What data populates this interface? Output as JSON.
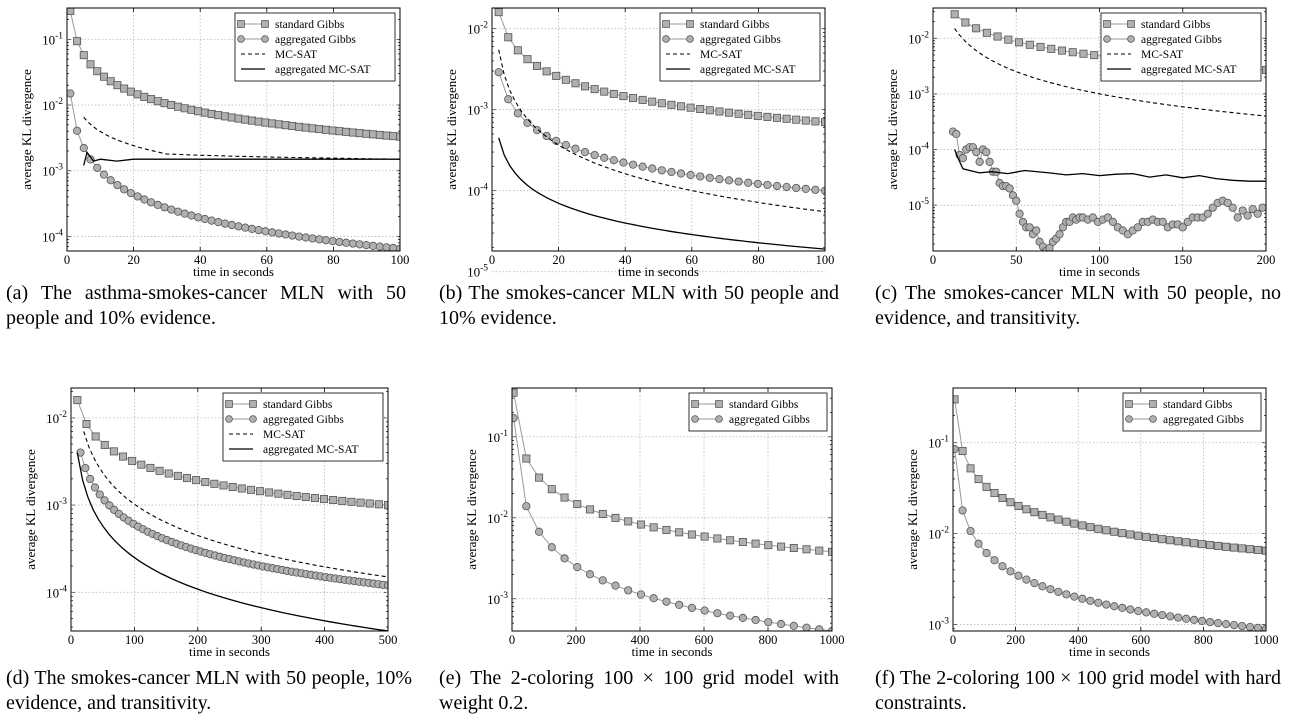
{
  "panels": [
    {
      "id": "a",
      "caption": "(a) The asthma-smokes-cancer MLN with 50 people and 10% evidence.",
      "chart_data": {
        "type": "line",
        "xlabel": "time in seconds",
        "ylabel": "average KL divergence",
        "xlim": [
          0,
          100
        ],
        "ylim": [
          6e-05,
          0.3
        ],
        "yscale": "log",
        "xticks": [
          "0",
          "20",
          "40",
          "60",
          "80",
          "100"
        ],
        "yticks": [
          {
            "exp": "-1",
            "v": 0.1
          },
          {
            "exp": "-2",
            "v": 0.01
          },
          {
            "exp": "-3",
            "v": 0.001
          },
          {
            "exp": "-4",
            "v": 0.0001
          }
        ],
        "grid": true,
        "legend": "top-right",
        "series": [
          {
            "name": "standard Gibbs",
            "marker": "square",
            "line": "solid-gray",
            "decay": "power",
            "x": [
              1,
              100
            ],
            "y": [
              0.27,
              0.0033
            ],
            "n": 50
          },
          {
            "name": "aggregated Gibbs",
            "marker": "circle",
            "line": "solid-gray",
            "decay": "power",
            "x": [
              1,
              100
            ],
            "y": [
              0.015,
              6.5e-05
            ],
            "n": 50
          },
          {
            "name": "MC-SAT",
            "marker": "none",
            "line": "dashed",
            "decay": "power",
            "x": [
              5,
              30,
              100
            ],
            "y": [
              0.0065,
              0.0018,
              0.0015
            ]
          },
          {
            "name": "aggregated MC-SAT",
            "marker": "none",
            "line": "solid-black",
            "decay": "points",
            "x": [
              5,
              6,
              8,
              10,
              15,
              20,
              30,
              40,
              60,
              80,
              100
            ],
            "y": [
              0.0012,
              0.0019,
              0.0014,
              0.0015,
              0.0014,
              0.0015,
              0.0015,
              0.0015,
              0.0015,
              0.0015,
              0.0015
            ]
          }
        ]
      }
    },
    {
      "id": "b",
      "caption": "(b) The smokes-cancer MLN with 50 people and 10% evidence.",
      "chart_data": {
        "type": "line",
        "xlabel": "time in seconds",
        "ylabel": "average KL divergence",
        "xlim": [
          0,
          100
        ],
        "ylim": [
          1.8e-05,
          0.018
        ],
        "yscale": "log",
        "xticks": [
          "0",
          "20",
          "40",
          "60",
          "80",
          "100"
        ],
        "yticks": [
          {
            "exp": "-2",
            "v": 0.01
          },
          {
            "exp": "-3",
            "v": 0.001
          },
          {
            "exp": "-4",
            "v": 0.0001
          },
          {
            "exp": "-5",
            "v": 1e-05
          }
        ],
        "grid": true,
        "legend": "top-right",
        "series": [
          {
            "name": "standard Gibbs",
            "marker": "square",
            "line": "solid-gray",
            "decay": "power",
            "x": [
              2,
              100
            ],
            "y": [
              0.016,
              0.0007
            ],
            "n": 35
          },
          {
            "name": "aggregated Gibbs",
            "marker": "circle",
            "line": "solid-gray",
            "decay": "power",
            "x": [
              2,
              100
            ],
            "y": [
              0.0029,
              0.0001
            ],
            "n": 35
          },
          {
            "name": "MC-SAT",
            "marker": "none",
            "line": "dashed",
            "decay": "power",
            "x": [
              2,
              100
            ],
            "y": [
              0.0055,
              5.5e-05
            ]
          },
          {
            "name": "aggregated MC-SAT",
            "marker": "none",
            "line": "solid-black",
            "decay": "power",
            "x": [
              2,
              100
            ],
            "y": [
              0.00045,
              1.9e-05
            ]
          }
        ]
      }
    },
    {
      "id": "c",
      "caption": "(c) The smokes-cancer MLN with 50 people, no evidence, and transitivity.",
      "chart_data": {
        "type": "line",
        "xlabel": "time in seconds",
        "ylabel": "average KL divergence",
        "xlim": [
          0,
          200
        ],
        "ylim": [
          1.5e-06,
          0.035
        ],
        "yscale": "log",
        "xticks": [
          "0",
          "50",
          "100",
          "150",
          "200"
        ],
        "yticks": [
          {
            "exp": "-2",
            "v": 0.01
          },
          {
            "exp": "-3",
            "v": 0.001
          },
          {
            "exp": "-4",
            "v": 0.0001
          },
          {
            "exp": "-5",
            "v": 1e-05
          }
        ],
        "grid": true,
        "legend": "top-right",
        "series": [
          {
            "name": "standard Gibbs",
            "marker": "square",
            "line": "solid-gray",
            "decay": "power",
            "x": [
              13,
              200
            ],
            "y": [
              0.027,
              0.0027
            ],
            "n": 30
          },
          {
            "name": "aggregated Gibbs",
            "marker": "circle",
            "line": "solid-gray",
            "decay": "points",
            "x": [
              12,
              14,
              16,
              18,
              20,
              22,
              24,
              26,
              28,
              30,
              32,
              34,
              36,
              38,
              40,
              42,
              44,
              46,
              48,
              50,
              52,
              54,
              56,
              58,
              60,
              62,
              64,
              66,
              68,
              70,
              72,
              74,
              76,
              78,
              80,
              82,
              84,
              86,
              88,
              90,
              93,
              96,
              99,
              102,
              105,
              108,
              111,
              114,
              117,
              120,
              123,
              126,
              129,
              132,
              135,
              138,
              141,
              144,
              147,
              150,
              153,
              156,
              159,
              162,
              165,
              168,
              171,
              174,
              177,
              180,
              183,
              186,
              189,
              192,
              195,
              198
            ],
            "y": [
              0.00021,
              0.00019,
              8e-05,
              7e-05,
              0.0001,
              0.00011,
              0.00011,
              9e-05,
              6e-05,
              0.0001,
              9e-05,
              6e-05,
              4e-05,
              4e-05,
              2.5e-05,
              2.2e-05,
              2.2e-05,
              2e-05,
              1.5e-05,
              1.2e-05,
              7e-06,
              5e-06,
              4e-06,
              4e-06,
              3e-06,
              3.5e-06,
              2.2e-06,
              1.8e-06,
              1.5e-06,
              1.7e-06,
              2.2e-06,
              2.5e-06,
              3e-06,
              4e-06,
              5e-06,
              5e-06,
              6e-06,
              5.5e-06,
              6e-06,
              6e-06,
              5.5e-06,
              6e-06,
              5e-06,
              5.5e-06,
              6e-06,
              5e-06,
              4e-06,
              3.5e-06,
              3e-06,
              3.5e-06,
              4e-06,
              5e-06,
              5e-06,
              5.5e-06,
              5e-06,
              5e-06,
              4e-06,
              4.5e-06,
              4.5e-06,
              4e-06,
              5e-06,
              6e-06,
              6e-06,
              6e-06,
              7e-06,
              9e-06,
              1.1e-05,
              1.2e-05,
              1.1e-05,
              9e-06,
              6e-06,
              8e-06,
              6.5e-06,
              8.5e-06,
              7e-06,
              9e-06
            ]
          },
          {
            "name": "MC-SAT",
            "marker": "none",
            "line": "dashed",
            "decay": "power",
            "x": [
              13,
              200
            ],
            "y": [
              0.015,
              0.0004
            ]
          },
          {
            "name": "aggregated MC-SAT",
            "marker": "none",
            "line": "solid-black",
            "decay": "points",
            "x": [
              13,
              15,
              18,
              22,
              28,
              35,
              45,
              55,
              70,
              80,
              90,
              100,
              110,
              120,
              130,
              140,
              150,
              160,
              170,
              180,
              190,
              200
            ],
            "y": [
              0.0001,
              7e-05,
              4.5e-05,
              4.2e-05,
              3.8e-05,
              4e-05,
              3.7e-05,
              4.2e-05,
              3.8e-05,
              3.5e-05,
              3.7e-05,
              3.4e-05,
              3.6e-05,
              3.7e-05,
              3.2e-05,
              3.5e-05,
              3.1e-05,
              3.4e-05,
              3e-05,
              2.8e-05,
              2.7e-05,
              2.7e-05
            ]
          }
        ]
      }
    },
    {
      "id": "d",
      "caption": "(d) The smokes-cancer MLN with 50 people, 10% evidence, and transitivity.",
      "chart_data": {
        "type": "line",
        "xlabel": "time in seconds",
        "ylabel": "average KL divergence",
        "xlim": [
          0,
          500
        ],
        "ylim": [
          3.6e-05,
          0.022
        ],
        "yscale": "log",
        "xticks": [
          "0",
          "100",
          "200",
          "300",
          "400",
          "500"
        ],
        "yticks": [
          {
            "exp": "-2",
            "v": 0.01
          },
          {
            "exp": "-3",
            "v": 0.001
          },
          {
            "exp": "-4",
            "v": 0.0001
          }
        ],
        "grid": true,
        "legend": "top-right",
        "series": [
          {
            "name": "standard Gibbs",
            "marker": "square",
            "line": "solid-gray",
            "decay": "power",
            "x": [
              10,
              500
            ],
            "y": [
              0.016,
              0.001
            ],
            "n": 35
          },
          {
            "name": "aggregated Gibbs",
            "marker": "circle",
            "line": "solid-gray",
            "decay": "power",
            "x": [
              15,
              500
            ],
            "y": [
              0.004,
              0.00012
            ],
            "n": 65
          },
          {
            "name": "MC-SAT",
            "marker": "none",
            "line": "dashed",
            "decay": "power",
            "x": [
              20,
              500
            ],
            "y": [
              0.007,
              0.00015
            ]
          },
          {
            "name": "aggregated MC-SAT",
            "marker": "none",
            "line": "solid-black",
            "decay": "power",
            "x": [
              10,
              500
            ],
            "y": [
              0.004,
              3.6e-05
            ]
          }
        ]
      }
    },
    {
      "id": "e",
      "caption": "(e) The 2-coloring 100 × 100 grid model with weight 0.2.",
      "chart_data": {
        "type": "line",
        "xlabel": "time in seconds",
        "ylabel": "average KL divergence",
        "xlim": [
          0,
          1000
        ],
        "ylim": [
          0.0004,
          0.4
        ],
        "yscale": "log",
        "xticks": [
          "0",
          "200",
          "400",
          "600",
          "800",
          "1000"
        ],
        "yticks": [
          {
            "exp": "-1",
            "v": 0.1
          },
          {
            "exp": "-2",
            "v": 0.01
          },
          {
            "exp": "-3",
            "v": 0.001
          }
        ],
        "grid": true,
        "legend": "top-right",
        "series": [
          {
            "name": "standard Gibbs",
            "marker": "square",
            "line": "solid-gray",
            "decay": "power",
            "x": [
              5,
              1000
            ],
            "y": [
              0.35,
              0.0038
            ],
            "n": 26
          },
          {
            "name": "aggregated Gibbs",
            "marker": "circle",
            "line": "solid-gray",
            "decay": "power",
            "x": [
              5,
              1000
            ],
            "y": [
              0.17,
              0.0004
            ],
            "n": 26
          }
        ]
      }
    },
    {
      "id": "f",
      "caption": "(f) The 2-coloring 100 × 100 grid model with hard constraints.",
      "chart_data": {
        "type": "line",
        "xlabel": "time in seconds",
        "ylabel": "average KL divergence",
        "xlim": [
          0,
          1000
        ],
        "ylim": [
          0.00085,
          0.4
        ],
        "yscale": "log",
        "xticks": [
          "0",
          "200",
          "400",
          "600",
          "800",
          "1000"
        ],
        "yticks": [
          {
            "exp": "-1",
            "v": 0.1
          },
          {
            "exp": "-2",
            "v": 0.01
          },
          {
            "exp": "-3",
            "v": 0.001
          }
        ],
        "grid": true,
        "legend": "top-right",
        "series": [
          {
            "name": "standard Gibbs",
            "marker": "square",
            "line": "solid-gray",
            "decay": "power",
            "x": [
              5,
              1000
            ],
            "y": [
              0.3,
              0.0065
            ],
            "n": 40
          },
          {
            "name": "aggregated Gibbs",
            "marker": "circle",
            "line": "solid-gray",
            "decay": "power",
            "x": [
              5,
              1000
            ],
            "y": [
              0.085,
              0.0009
            ],
            "n": 40
          }
        ]
      }
    }
  ]
}
